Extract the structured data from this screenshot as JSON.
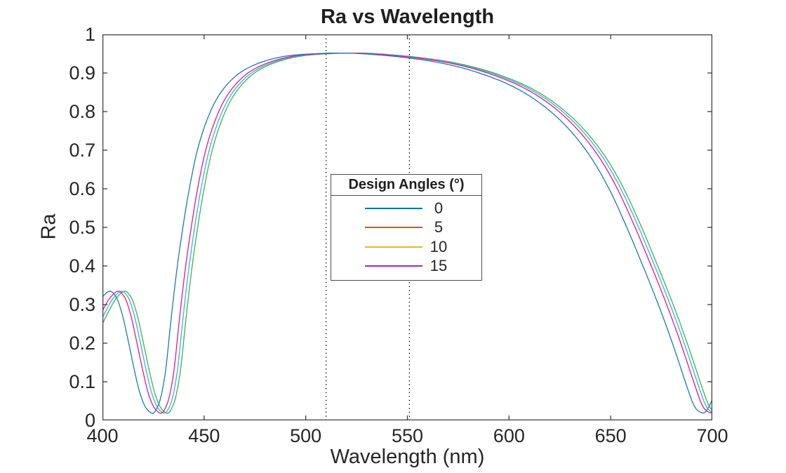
{
  "title": "Ra vs Wavelength",
  "chart_data": {
    "type": "line",
    "title": "Ra vs Wavelength",
    "xlabel": "Wavelength (nm)",
    "ylabel": "Ra",
    "xlim": [
      400,
      700
    ],
    "ylim": [
      0,
      1
    ],
    "xticks": [
      400,
      450,
      500,
      550,
      600,
      650,
      700
    ],
    "yticks": [
      0,
      0.1,
      0.2,
      0.3,
      0.4,
      0.5,
      0.6,
      0.7,
      0.8,
      0.9,
      1
    ],
    "grid": false,
    "frame_color": "#3d3d3d",
    "text_color": "#262626",
    "legend": {
      "title": "Design Angles (°)",
      "position": "center",
      "entries": [
        {
          "label": "0",
          "color": "#0072BD"
        },
        {
          "label": "5",
          "color": "#D95319"
        },
        {
          "label": "10",
          "color": "#EDB120"
        },
        {
          "label": "15",
          "color": "#9032C8"
        }
      ]
    },
    "vlines": {
      "x": [
        510,
        551
      ],
      "style": "dotted",
      "color": "#1c1c1c"
    },
    "base_curve": {
      "comment": "Spectral shape of the 0-deg (rightmost) curve; other angles are blue-shifted copies: Ra(lambda) = base(lambda - shift_nm)",
      "x": [
        400,
        404,
        407,
        411,
        414,
        417,
        420,
        423,
        426,
        429,
        432,
        435,
        438,
        441,
        444,
        447,
        450,
        454,
        458,
        462,
        466,
        470,
        475,
        480,
        486,
        492,
        498,
        505,
        512,
        520,
        528,
        536,
        545,
        552,
        560,
        568,
        576,
        584,
        592,
        600,
        608,
        616,
        624,
        632,
        640,
        648,
        656,
        664,
        672,
        680,
        686,
        691,
        695,
        698,
        700,
        703,
        708
      ],
      "y": [
        0.25,
        0.292,
        0.318,
        0.335,
        0.32,
        0.275,
        0.205,
        0.13,
        0.066,
        0.03,
        0.018,
        0.042,
        0.115,
        0.26,
        0.395,
        0.505,
        0.6,
        0.7,
        0.768,
        0.818,
        0.853,
        0.878,
        0.901,
        0.916,
        0.929,
        0.938,
        0.944,
        0.948,
        0.95,
        0.9515,
        0.9515,
        0.9495,
        0.946,
        0.9425,
        0.9375,
        0.9315,
        0.9235,
        0.9135,
        0.901,
        0.886,
        0.868,
        0.845,
        0.816,
        0.78,
        0.735,
        0.678,
        0.605,
        0.515,
        0.415,
        0.31,
        0.225,
        0.148,
        0.085,
        0.042,
        0.026,
        0.019,
        0.06
      ],
      "peak_Ra": 0.952,
      "peak_nm": 522,
      "local_max": {
        "nm": 411,
        "Ra": 0.335
      },
      "local_min": {
        "nm": 432,
        "Ra": 0.018
      }
    },
    "series": [
      {
        "name": "0",
        "line_color": "#42b64a",
        "shift_nm": 0
      },
      {
        "name": "5",
        "line_color": "#3cb4e5",
        "shift_nm": -1.5
      },
      {
        "name": "10",
        "line_color": "#e81e8c",
        "shift_nm": -3.2
      },
      {
        "name": "15",
        "line_color": "#2779c2",
        "shift_nm": -7.3
      }
    ]
  }
}
